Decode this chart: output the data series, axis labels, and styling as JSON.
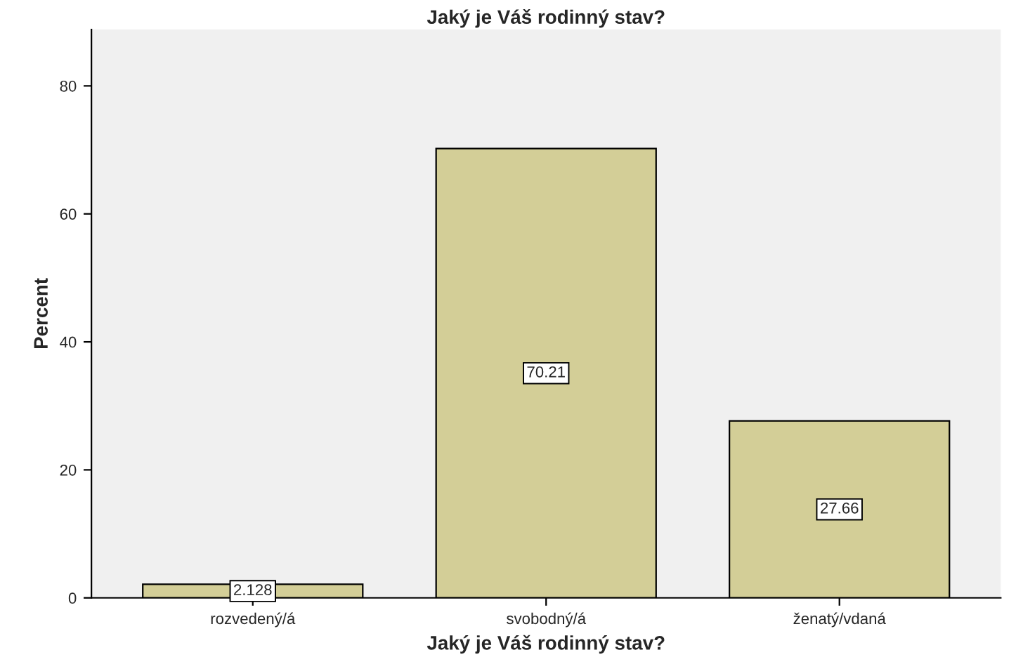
{
  "chart_data": {
    "type": "bar",
    "title": "Jaký je Váš rodinný stav?",
    "xlabel": "Jaký je Váš rodinný stav?",
    "ylabel": "Percent",
    "categories": [
      "rozvedený/á",
      "svobodný/á",
      "ženatý/vdaná"
    ],
    "values": [
      2.128,
      70.21,
      27.66
    ],
    "color": "#d3ce97",
    "ylim": [
      0,
      88.8
    ],
    "yticks": [
      0,
      20,
      40,
      60,
      80
    ],
    "grid": false,
    "data_labels": true
  }
}
